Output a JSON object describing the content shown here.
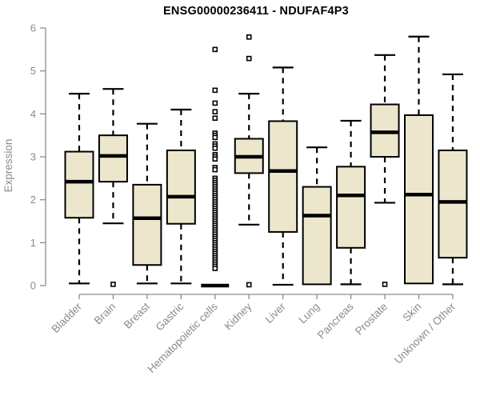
{
  "chart_data": {
    "type": "boxplot",
    "title": "ENSG00000236411 - NDUFAF4P3",
    "xlabel": "",
    "ylabel": "Expression",
    "ylim": [
      0,
      6
    ],
    "yticks": [
      0,
      1,
      2,
      3,
      4,
      5,
      6
    ],
    "grid": false,
    "legend": null,
    "categories": [
      "Bladder",
      "Brain",
      "Breast",
      "Gastric",
      "Hematopoietic cells",
      "Kidney",
      "Liver",
      "Lung",
      "Pancreas",
      "Prostate",
      "Skin",
      "Unknown / Other"
    ],
    "boxes": [
      {
        "category": "Bladder",
        "whisker_low": 0.05,
        "q1": 1.58,
        "median": 2.42,
        "q3": 3.12,
        "whisker_high": 4.47,
        "outliers": []
      },
      {
        "category": "Brain",
        "whisker_low": 1.45,
        "q1": 2.42,
        "median": 3.02,
        "q3": 3.5,
        "whisker_high": 4.58,
        "outliers": [
          0.03
        ]
      },
      {
        "category": "Breast",
        "whisker_low": 0.05,
        "q1": 0.48,
        "median": 1.57,
        "q3": 2.35,
        "whisker_high": 3.77,
        "outliers": []
      },
      {
        "category": "Gastric",
        "whisker_low": 0.05,
        "q1": 1.44,
        "median": 2.07,
        "q3": 3.15,
        "whisker_high": 4.1,
        "outliers": []
      },
      {
        "category": "Hematopoietic cells",
        "whisker_low": 0,
        "q1": 0,
        "median": 0,
        "q3": 0,
        "whisker_high": 0,
        "outliers": [
          5.5,
          4.55,
          4.25,
          4.05,
          3.9,
          3.55,
          3.5,
          3.45,
          3.3,
          3.25,
          3.2,
          3.05,
          3.0,
          2.95,
          2.75,
          2.7,
          2.5,
          2.45,
          2.4,
          2.35,
          2.3,
          2.25,
          2.2,
          2.15,
          2.1,
          2.05,
          2.0,
          1.95,
          1.9,
          1.85,
          1.8,
          1.75,
          1.7,
          1.65,
          1.6,
          1.55,
          1.5,
          1.45,
          1.4,
          1.35,
          1.3,
          1.25,
          1.2,
          1.15,
          1.1,
          1.05,
          1.0,
          0.95,
          0.9,
          0.85,
          0.8,
          0.75,
          0.7,
          0.65,
          0.6,
          0.55,
          0.5,
          0.45,
          0.4
        ]
      },
      {
        "category": "Kidney",
        "whisker_low": 1.42,
        "q1": 2.62,
        "median": 3.0,
        "q3": 3.42,
        "whisker_high": 4.47,
        "outliers": [
          5.79,
          5.29,
          0.02
        ]
      },
      {
        "category": "Liver",
        "whisker_low": 0.02,
        "q1": 1.25,
        "median": 2.67,
        "q3": 3.83,
        "whisker_high": 5.08,
        "outliers": []
      },
      {
        "category": "Lung",
        "whisker_low": 0.03,
        "q1": 0.03,
        "median": 1.63,
        "q3": 2.3,
        "whisker_high": 3.22,
        "outliers": []
      },
      {
        "category": "Pancreas",
        "whisker_low": 0.03,
        "q1": 0.88,
        "median": 2.1,
        "q3": 2.77,
        "whisker_high": 3.84,
        "outliers": []
      },
      {
        "category": "Prostate",
        "whisker_low": 1.93,
        "q1": 3.0,
        "median": 3.57,
        "q3": 4.22,
        "whisker_high": 5.37,
        "outliers": [
          0.03
        ]
      },
      {
        "category": "Skin",
        "whisker_low": 0.05,
        "q1": 0.05,
        "median": 2.12,
        "q3": 3.97,
        "whisker_high": 5.8,
        "outliers": []
      },
      {
        "category": "Unknown / Other",
        "whisker_low": 0.03,
        "q1": 0.65,
        "median": 1.95,
        "q3": 3.15,
        "whisker_high": 4.92,
        "outliers": []
      }
    ],
    "colors": {
      "box_fill": "#ECE7CC",
      "box_border": "#000000",
      "median": "#000000",
      "whisker": "#000000",
      "outlier_stroke": "#000000",
      "outlier_fill": "#FFFFFF",
      "axis": "#8B8B8B",
      "tick_label": "#8B8B8B",
      "title": "#000000",
      "background": "#FFFFFF"
    }
  }
}
